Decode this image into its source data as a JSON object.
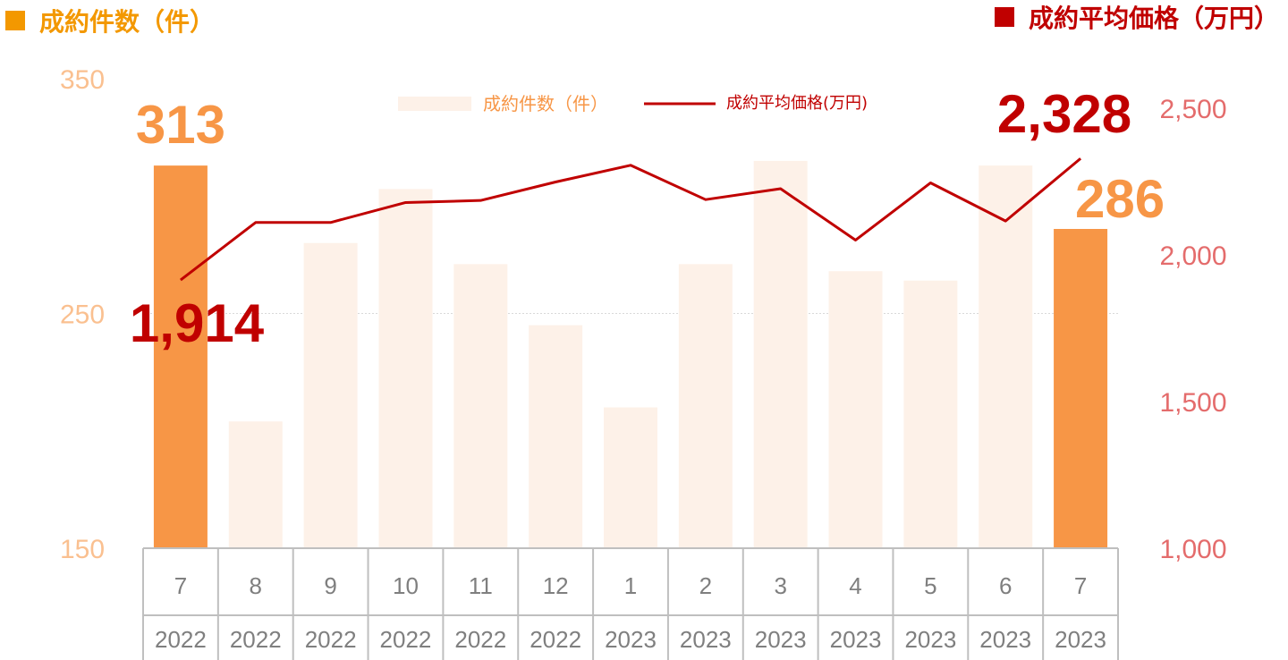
{
  "header": {
    "left_title": "成約件数（件）",
    "right_title": "成約平均価格（万円）",
    "left_color": "#f39800",
    "right_color": "#c00000"
  },
  "legend": {
    "bar_label": "成約件数（件）",
    "line_label": "成約平均価格(万円)"
  },
  "chart_data": {
    "type": "bar",
    "categories": [
      "7",
      "8",
      "9",
      "10",
      "11",
      "12",
      "1",
      "2",
      "3",
      "4",
      "5",
      "6",
      "7"
    ],
    "years": [
      "2022",
      "2022",
      "2022",
      "2022",
      "2022",
      "2022",
      "2023",
      "2023",
      "2023",
      "2023",
      "2023",
      "2023",
      "2023"
    ],
    "series": [
      {
        "name": "成約件数（件）",
        "type": "bar",
        "axis": "left",
        "values": [
          313,
          204,
          280,
          303,
          271,
          245,
          210,
          271,
          315,
          268,
          264,
          313,
          286
        ],
        "color": "#fdf1e8",
        "highlight_color": "#f79646"
      },
      {
        "name": "成約平均価格(万円)",
        "type": "line",
        "axis": "right",
        "values": [
          1914,
          2110,
          2110,
          2178,
          2185,
          2248,
          2305,
          2188,
          2225,
          2050,
          2245,
          2115,
          2328
        ],
        "color": "#c00000"
      }
    ],
    "left_axis": {
      "ylim": [
        150,
        350
      ],
      "ticks": [
        "150",
        "250",
        "350"
      ],
      "color": "#fac090"
    },
    "right_axis": {
      "ylim": [
        1000,
        2600
      ],
      "ticks": [
        "1,000",
        "1,500",
        "2,000",
        "2,500"
      ],
      "color": "#e46c6c"
    },
    "annotations": {
      "first_bar": "313",
      "last_bar": "286",
      "first_line": "1,914",
      "last_line": "2,328"
    },
    "gridline_at": 250,
    "legend_position": "top-center"
  }
}
